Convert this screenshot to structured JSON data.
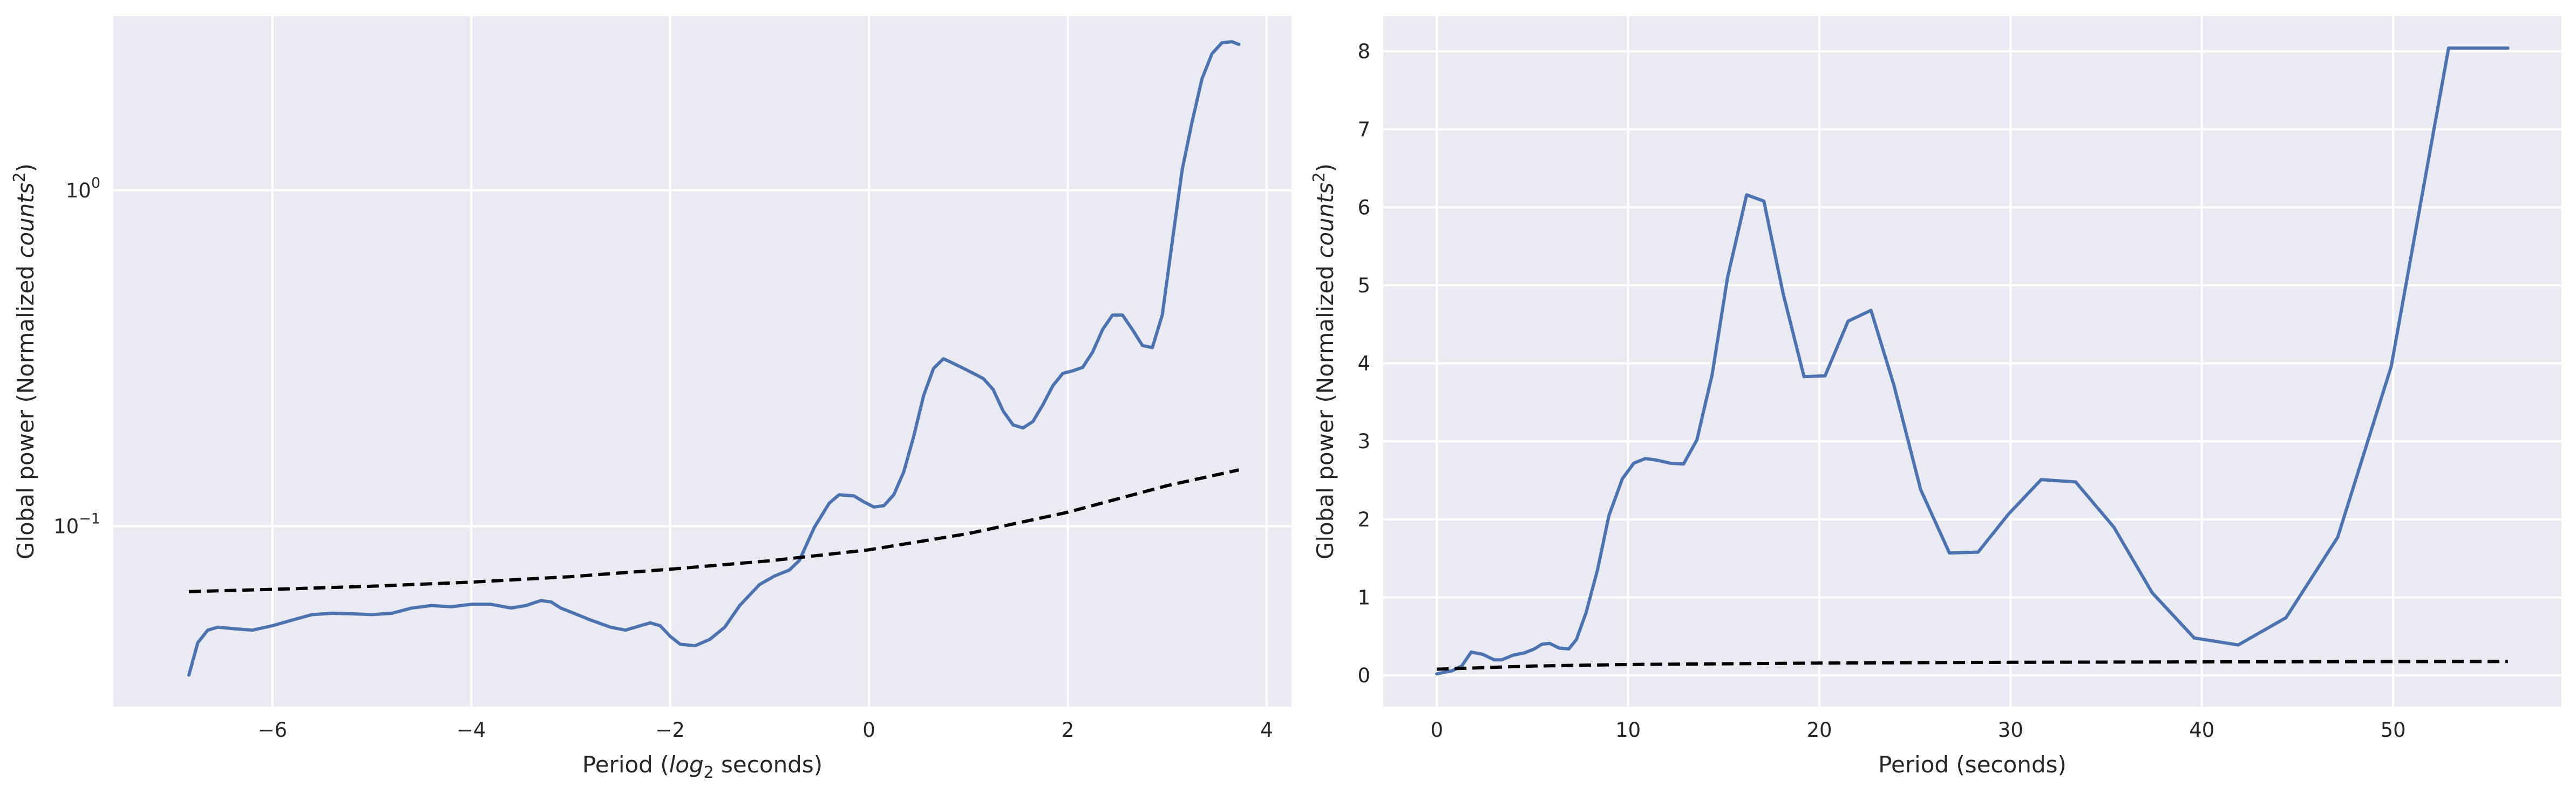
{
  "chart_data": [
    {
      "type": "line",
      "title": "",
      "xlabel_parts": {
        "pre": "Period (",
        "italic": "log",
        "sub": "2",
        "post": " seconds)"
      },
      "ylabel_parts": {
        "pre": "Global power (Normalized ",
        "italic": "counts",
        "sup": "2",
        "post": ")"
      },
      "yscale": "log",
      "xlim": [
        -7.6,
        4.25
      ],
      "ylim": [
        0.029,
        3.3
      ],
      "xticks": [
        -6,
        -4,
        -2,
        0,
        2,
        4
      ],
      "xtick_labels": [
        "−6",
        "−4",
        "−2",
        "0",
        "2",
        "4"
      ],
      "yticks": [
        0.1,
        1
      ],
      "ytick_labels": [
        {
          "base": "10",
          "exp": "−1"
        },
        {
          "base": "10",
          "exp": "0"
        }
      ],
      "grid": true,
      "series": [
        {
          "style": "solid",
          "color": "#4c72b0",
          "x": [
            -6.84,
            -6.75,
            -6.65,
            -6.55,
            -6.4,
            -6.2,
            -6.0,
            -5.8,
            -5.6,
            -5.4,
            -5.2,
            -5.0,
            -4.8,
            -4.6,
            -4.4,
            -4.2,
            -4.0,
            -3.8,
            -3.6,
            -3.45,
            -3.3,
            -3.2,
            -3.1,
            -3.0,
            -2.8,
            -2.6,
            -2.45,
            -2.3,
            -2.2,
            -2.1,
            -2.0,
            -1.9,
            -1.75,
            -1.6,
            -1.45,
            -1.3,
            -1.1,
            -0.95,
            -0.8,
            -0.7,
            -0.55,
            -0.4,
            -0.3,
            -0.15,
            -0.05,
            0.05,
            0.15,
            0.25,
            0.35,
            0.45,
            0.55,
            0.65,
            0.75,
            0.85,
            0.95,
            1.05,
            1.15,
            1.25,
            1.35,
            1.45,
            1.55,
            1.65,
            1.75,
            1.85,
            1.95,
            2.05,
            2.15,
            2.25,
            2.35,
            2.45,
            2.55,
            2.65,
            2.75,
            2.85,
            2.95,
            3.05,
            3.15,
            3.25,
            3.35,
            3.45,
            3.55,
            3.65,
            3.72
          ],
          "y": [
            0.036,
            0.045,
            0.049,
            0.05,
            0.0495,
            0.049,
            0.0505,
            0.0525,
            0.0545,
            0.055,
            0.0548,
            0.0545,
            0.055,
            0.057,
            0.058,
            0.0575,
            0.0585,
            0.0585,
            0.057,
            0.058,
            0.06,
            0.0595,
            0.057,
            0.0555,
            0.0525,
            0.05,
            0.049,
            0.0505,
            0.0515,
            0.0505,
            0.047,
            0.0445,
            0.044,
            0.046,
            0.05,
            0.058,
            0.067,
            0.071,
            0.074,
            0.079,
            0.099,
            0.117,
            0.124,
            0.123,
            0.118,
            0.114,
            0.115,
            0.124,
            0.145,
            0.185,
            0.245,
            0.295,
            0.315,
            0.305,
            0.295,
            0.285,
            0.275,
            0.255,
            0.22,
            0.2,
            0.196,
            0.205,
            0.23,
            0.262,
            0.285,
            0.29,
            0.297,
            0.33,
            0.385,
            0.425,
            0.425,
            0.385,
            0.345,
            0.34,
            0.425,
            0.7,
            1.15,
            1.6,
            2.15,
            2.55,
            2.75,
            2.77,
            2.72
          ]
        },
        {
          "style": "dashed",
          "color": "#000000",
          "x": [
            -6.84,
            -6.0,
            -5.0,
            -4.0,
            -3.0,
            -2.0,
            -1.0,
            0.0,
            1.0,
            2.0,
            3.0,
            3.72
          ],
          "y": [
            0.0638,
            0.0648,
            0.0662,
            0.0681,
            0.0707,
            0.0744,
            0.0788,
            0.085,
            0.095,
            0.11,
            0.132,
            0.147
          ]
        }
      ]
    },
    {
      "type": "line",
      "title": "",
      "xlabel": "Period (seconds)",
      "ylabel_parts": {
        "pre": "Global power (Normalized ",
        "italic": "counts",
        "sup": "2",
        "post": ")"
      },
      "yscale": "linear",
      "xlim": [
        -2.8,
        58.8
      ],
      "ylim": [
        -0.4,
        8.45
      ],
      "xticks": [
        0,
        10,
        20,
        30,
        40,
        50
      ],
      "xtick_labels": [
        "0",
        "10",
        "20",
        "30",
        "40",
        "50"
      ],
      "yticks": [
        0,
        1,
        2,
        3,
        4,
        5,
        6,
        7,
        8
      ],
      "ytick_labels": [
        "0",
        "1",
        "2",
        "3",
        "4",
        "5",
        "6",
        "7",
        "8"
      ],
      "grid": true,
      "series": [
        {
          "style": "solid",
          "color": "#4c72b0",
          "x": [
            0.0,
            0.8,
            1.3,
            1.8,
            2.4,
            3.0,
            3.4,
            4.0,
            4.6,
            5.1,
            5.5,
            5.9,
            6.4,
            6.9,
            7.3,
            7.8,
            8.4,
            9.0,
            9.7,
            10.3,
            10.9,
            11.5,
            12.2,
            12.9,
            13.6,
            14.4,
            15.2,
            16.2,
            17.1,
            18.1,
            19.2,
            20.3,
            21.5,
            22.7,
            23.9,
            25.3,
            26.8,
            28.3,
            29.9,
            31.6,
            33.4,
            35.4,
            37.4,
            39.6,
            41.9,
            44.4,
            47.1,
            49.9,
            52.9,
            56.0
          ],
          "y": [
            0.02,
            0.06,
            0.12,
            0.3,
            0.27,
            0.2,
            0.2,
            0.26,
            0.29,
            0.34,
            0.4,
            0.41,
            0.35,
            0.34,
            0.46,
            0.8,
            1.35,
            2.05,
            2.52,
            2.72,
            2.78,
            2.76,
            2.72,
            2.71,
            3.02,
            3.86,
            5.1,
            6.16,
            6.08,
            4.9,
            3.83,
            3.84,
            4.54,
            4.68,
            3.72,
            2.38,
            1.57,
            1.58,
            2.07,
            2.51,
            2.48,
            1.9,
            1.06,
            0.48,
            0.39,
            0.74,
            1.77,
            3.96,
            8.04,
            8.04
          ]
        },
        {
          "style": "dashed",
          "color": "#000000",
          "x": [
            0.0,
            5.0,
            10.0,
            20.0,
            30.0,
            40.0,
            50.0,
            56.0
          ],
          "y": [
            0.08,
            0.12,
            0.14,
            0.158,
            0.168,
            0.173,
            0.177,
            0.179
          ]
        }
      ]
    }
  ]
}
